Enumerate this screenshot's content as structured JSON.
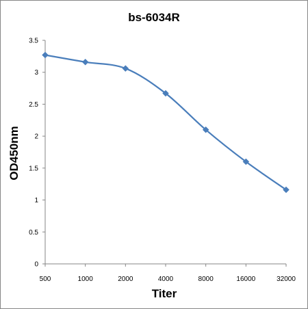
{
  "chart_data": {
    "type": "line",
    "title": "bs-6034R",
    "xlabel": "Titer",
    "ylabel": "OD450nm",
    "categories": [
      "500",
      "1000",
      "2000",
      "4000",
      "8000",
      "16000",
      "32000"
    ],
    "series": [
      {
        "values": [
          3.27,
          3.16,
          3.06,
          2.67,
          2.1,
          1.6,
          1.16
        ]
      }
    ],
    "ylim": [
      0,
      3.5
    ],
    "yticks": [
      "0",
      "0.5",
      "1",
      "1.5",
      "2",
      "2.5",
      "3",
      "3.5"
    ],
    "line_color": "#4a7ebb",
    "marker": "diamond",
    "smooth": true,
    "grid": false,
    "legend": "none"
  }
}
